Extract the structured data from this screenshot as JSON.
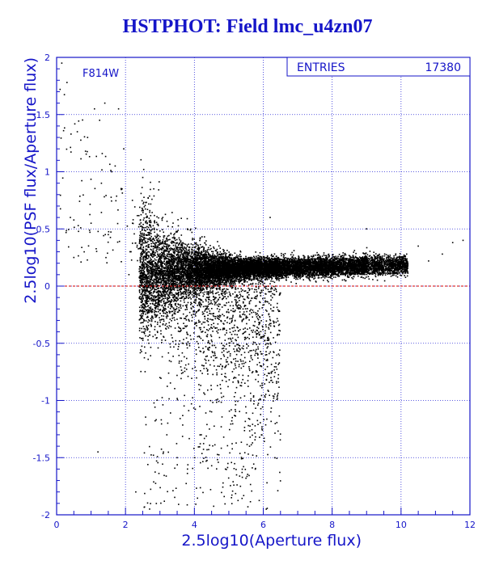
{
  "chart_data": {
    "type": "scatter",
    "title": "HSTPHOT: Field lmc_u4zn07",
    "xlabel": "2.5log10(Aperture flux)",
    "ylabel": "2.5log10(PSF flux/Aperture flux)",
    "xlim": [
      0,
      12
    ],
    "ylim": [
      -2,
      2
    ],
    "x_ticks": [
      "0",
      "2",
      "4",
      "6",
      "8",
      "10",
      "12"
    ],
    "y_ticks": [
      "-2",
      "-1.5",
      "-1",
      "-0.5",
      "0",
      "0.5",
      "1",
      "1.5",
      "2"
    ],
    "grid": true,
    "filter_label": "F814W",
    "stats_box": {
      "label": "ENTRIES",
      "value": "17380"
    },
    "reference_line": {
      "y": 0,
      "color": "#d00000",
      "style": "dashed"
    },
    "point_count": 17380,
    "series": [
      {
        "sample_points": [
          [
            0.1,
            1.72
          ],
          [
            0.15,
            1.95
          ],
          [
            0.3,
            1.78
          ],
          [
            0.4,
            0.6
          ],
          [
            0.5,
            0.25
          ],
          [
            0.6,
            1.35
          ],
          [
            0.8,
            0.3
          ],
          [
            0.9,
            1.3
          ],
          [
            1.0,
            0.55
          ],
          [
            1.1,
            1.55
          ],
          [
            1.2,
            -1.45
          ],
          [
            1.25,
            1.45
          ],
          [
            1.3,
            0.9
          ],
          [
            1.4,
            1.6
          ],
          [
            1.5,
            0.45
          ],
          [
            1.6,
            1.0
          ],
          [
            1.7,
            1.05
          ],
          [
            1.8,
            1.55
          ],
          [
            1.9,
            0.85
          ],
          [
            1.95,
            1.2
          ],
          [
            2.1,
            0.1
          ],
          [
            2.2,
            0.75
          ],
          [
            2.3,
            -1.8
          ],
          [
            2.5,
            0.95
          ],
          [
            2.6,
            0.6
          ],
          [
            2.7,
            -1.95
          ],
          [
            3.0,
            -0.8
          ],
          [
            3.2,
            -1.3
          ],
          [
            3.5,
            -1.5
          ],
          [
            3.8,
            -1.6
          ],
          [
            4.2,
            -1.3
          ],
          [
            4.5,
            -1.1
          ],
          [
            4.9,
            -1.6
          ],
          [
            5.1,
            -1.15
          ],
          [
            5.6,
            -1.4
          ],
          [
            6.2,
            0.6
          ],
          [
            9.0,
            0.5
          ],
          [
            10.5,
            0.35
          ],
          [
            10.8,
            0.22
          ],
          [
            11.2,
            0.28
          ],
          [
            11.5,
            0.38
          ],
          [
            11.8,
            0.4
          ]
        ],
        "core_distribution": {
          "mag_range": [
            2.3,
            10.2
          ],
          "ridge_y_at_x3": 0.14,
          "ridge_y_at_x10": 0.18,
          "lower_tail_min_y": -1.0
        }
      }
    ]
  }
}
